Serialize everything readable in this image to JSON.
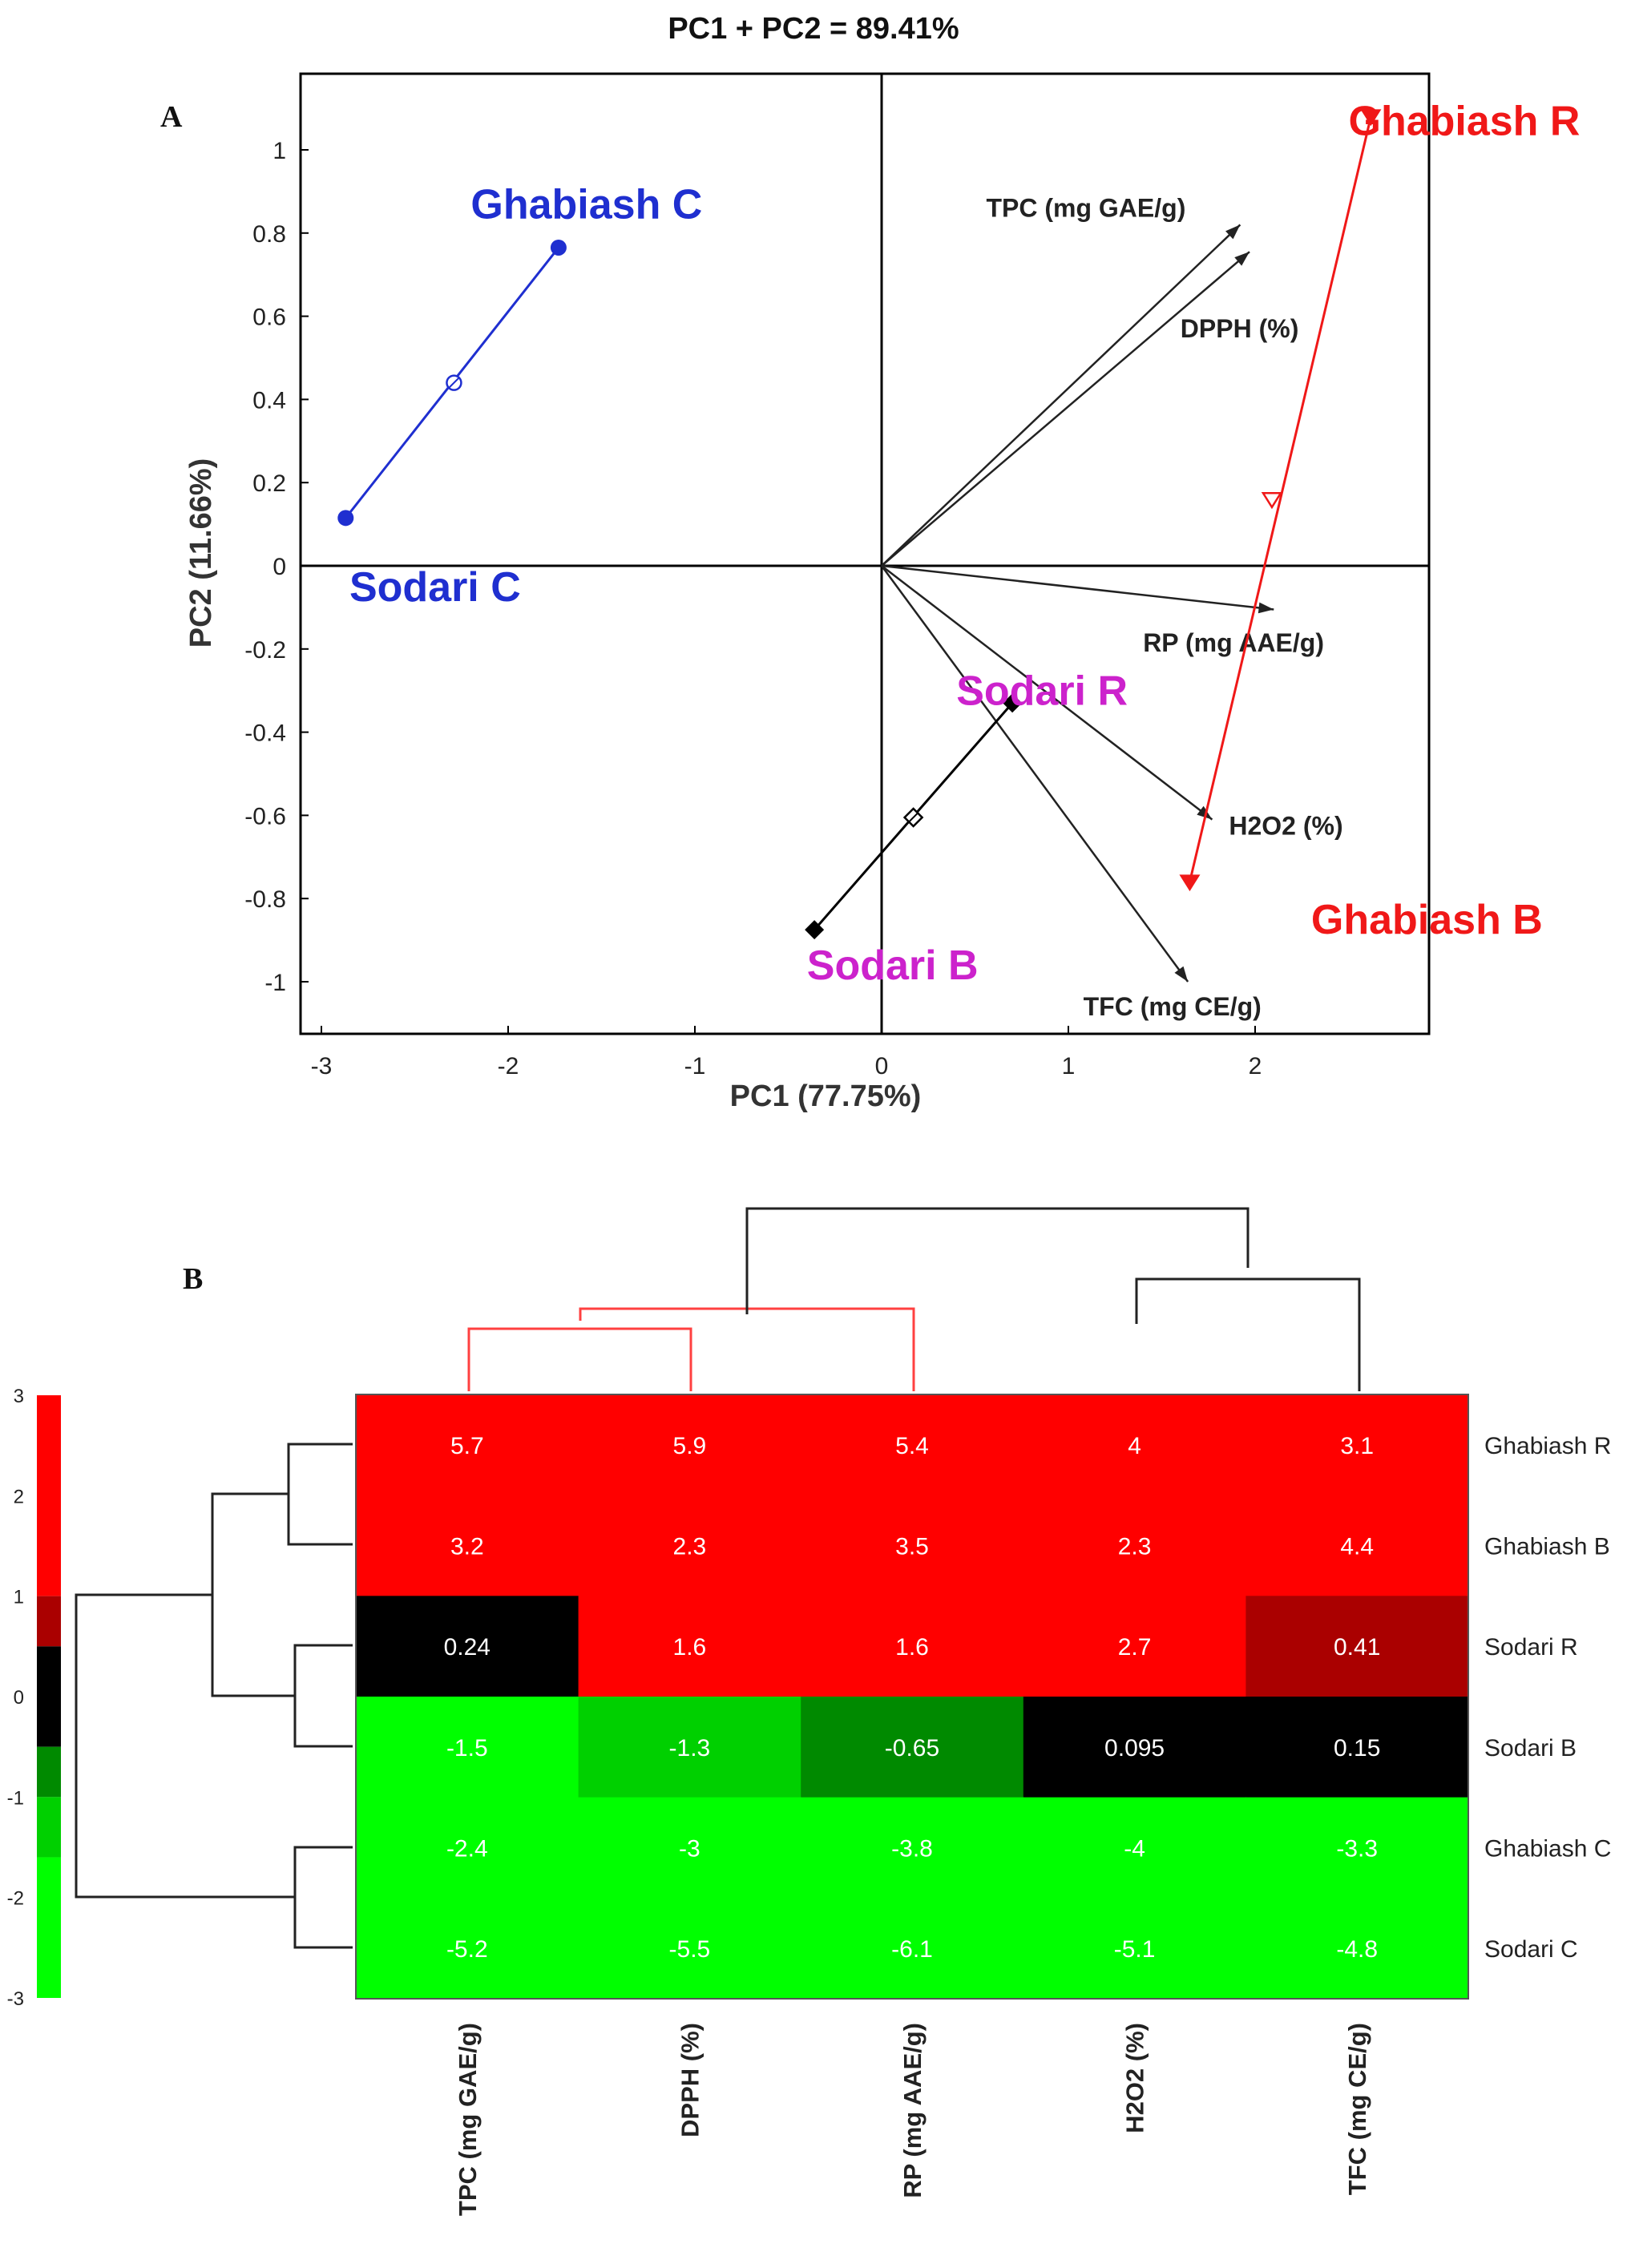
{
  "figure_labels": {
    "panel_a": "A",
    "panel_b": "B"
  },
  "chart_data": [
    {
      "type": "scatter",
      "subtype": "biplot",
      "title": "PC1 + PC2 = 89.41%",
      "xlabel": "PC1 (77.75%)",
      "ylabel": "PC2 (11.66%)",
      "xlim": [
        -3.1,
        2.85
      ],
      "ylim": [
        -1.12,
        1.18
      ],
      "xticks": [
        -3,
        -2,
        -1,
        0,
        1,
        2
      ],
      "xtick_labels": [
        "-3",
        "-2",
        "-1",
        "0",
        "1",
        "2"
      ],
      "yticks": [
        1,
        0.8,
        0.6,
        0.4,
        0.2,
        0,
        -0.2,
        -0.4,
        -0.6,
        -0.8,
        -1
      ],
      "ytick_labels": [
        "1",
        "0.8",
        "0.6",
        "0.4",
        "0.2",
        "0",
        "-0.2",
        "-0.4",
        "-0.6",
        "-0.8",
        "-1"
      ],
      "groups": [
        {
          "name": "Ghabiash C",
          "color": "#1f2fd0",
          "marker": "circle",
          "start": [
            -1.73,
            0.765
          ],
          "end": [
            -2.87,
            0.115
          ],
          "mid": [
            -2.29,
            0.44
          ],
          "labels": [
            {
              "text": "Ghabiash C",
              "at": [
                -2.2,
                0.87
              ]
            },
            {
              "text": "Sodari C",
              "at": [
                -2.85,
                -0.05
              ]
            }
          ]
        },
        {
          "name": "Ghabiash R/B",
          "color": "#f01818",
          "marker": "triangle",
          "start": [
            2.62,
            1.08
          ],
          "end": [
            1.65,
            -0.76
          ],
          "mid": [
            2.09,
            0.16
          ],
          "labels": [
            {
              "text": "Ghabiash R",
              "at": [
                2.5,
                1.07
              ]
            },
            {
              "text": "Ghabiash B",
              "at": [
                2.3,
                -0.85
              ]
            }
          ]
        },
        {
          "name": "Sodari R/B",
          "color": "#000000",
          "marker": "diamond",
          "start": [
            0.7,
            -0.33
          ],
          "end": [
            -0.36,
            -0.875
          ],
          "mid": [
            0.17,
            -0.605
          ],
          "labels": [
            {
              "text": "Sodari R",
              "at": [
                0.4,
                -0.3
              ]
            },
            {
              "text": "Sodari B",
              "at": [
                -0.4,
                -0.96
              ]
            }
          ]
        }
      ],
      "loadings": [
        {
          "name": "TPC (mg GAE/g)",
          "x": 1.92,
          "y": 0.82,
          "label_at": [
            0.56,
            0.86
          ]
        },
        {
          "name": "DPPH (%)",
          "x": 1.97,
          "y": 0.755,
          "label_at": [
            1.6,
            0.57
          ]
        },
        {
          "name": "RP (mg AAE/g)",
          "x": 2.1,
          "y": -0.105,
          "label_at": [
            1.4,
            -0.185
          ]
        },
        {
          "name": "H2O2  (%)",
          "x": 1.77,
          "y": -0.61,
          "label_at": [
            1.86,
            -0.625
          ]
        },
        {
          "name": "TFC (mg CE/g)",
          "x": 1.64,
          "y": -1.0,
          "label_at": [
            1.08,
            -1.06
          ]
        }
      ]
    },
    {
      "type": "heatmap",
      "columns": [
        "TPC (mg GAE/g)",
        "DPPH (%)",
        "RP (mg AAE/g)",
        "H2O2  (%)",
        "TFC (mg CE/g)"
      ],
      "rows": [
        "Ghabiash R",
        "Ghabiash B",
        "Sodari R",
        "Sodari B",
        "Ghabiash C",
        "Sodari C"
      ],
      "values": [
        [
          5.7,
          5.9,
          5.4,
          4,
          3.1
        ],
        [
          3.2,
          2.3,
          3.5,
          2.3,
          4.4
        ],
        [
          0.24,
          1.6,
          1.6,
          2.7,
          0.41
        ],
        [
          -1.5,
          -1.3,
          -0.65,
          0.095,
          0.15
        ],
        [
          -2.4,
          -3,
          -3.8,
          -4,
          -3.3
        ],
        [
          -5.2,
          -5.5,
          -6.1,
          -5.1,
          -4.8
        ]
      ],
      "value_labels": [
        [
          "5.7",
          "5.9",
          "5.4",
          "4",
          "3.1"
        ],
        [
          "3.2",
          "2.3",
          "3.5",
          "2.3",
          "4.4"
        ],
        [
          "0.24",
          "1.6",
          "1.6",
          "2.7",
          "0.41"
        ],
        [
          "-1.5",
          "-1.3",
          "-0.65",
          "0.095",
          "0.15"
        ],
        [
          "-2.4",
          "-3",
          "-3.8",
          "-4",
          "-3.3"
        ],
        [
          "-5.2",
          "-5.5",
          "-6.1",
          "-5.1",
          "-4.8"
        ]
      ],
      "colorbar": {
        "range": [
          -3,
          3
        ],
        "tick_labels": [
          "3",
          "2",
          "1",
          "0",
          "-1",
          "-2",
          "-3"
        ],
        "bins": [
          {
            "from": 1,
            "to": 3,
            "color": "#ff0000"
          },
          {
            "from": 0.5,
            "to": 1,
            "color": "#aa0000"
          },
          {
            "from": -0.5,
            "to": 0.5,
            "color": "#000000"
          },
          {
            "from": -1,
            "to": -0.5,
            "color": "#008a00"
          },
          {
            "from": -1.6,
            "to": -1,
            "color": "#00d000"
          },
          {
            "from": -3,
            "to": -1.6,
            "color": "#00ff00"
          }
        ]
      },
      "palette": {
        "high": "#ff0000",
        "mid_high": "#aa0000",
        "zero": "#000000",
        "mid_low": "#008a00",
        "low2": "#00d000",
        "low": "#00ff00"
      }
    }
  ]
}
